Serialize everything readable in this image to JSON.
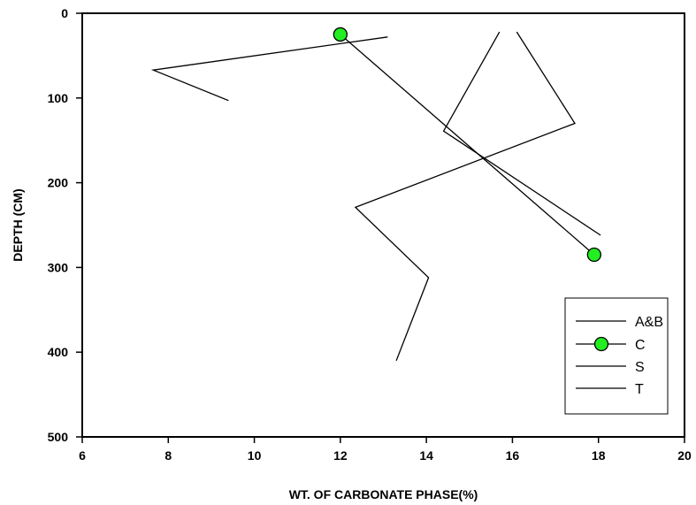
{
  "chart_data": {
    "type": "line",
    "xlabel": "WT. OF CARBONATE PHASE(%)",
    "ylabel": "DEPTH (CM)",
    "xlim": [
      6,
      20
    ],
    "ylim": [
      0,
      500
    ],
    "y_inverted": true,
    "x_ticks": [
      6,
      8,
      10,
      12,
      14,
      16,
      18,
      20
    ],
    "y_ticks": [
      0,
      100,
      200,
      300,
      400,
      500
    ],
    "grid": false,
    "legend_position": "bottom-right",
    "series": [
      {
        "name": "A&B",
        "marker": "none",
        "color": "#000000",
        "points": [
          [
            13.1,
            28
          ],
          [
            7.65,
            67
          ],
          [
            9.4,
            103
          ]
        ]
      },
      {
        "name": "C",
        "marker": "circle",
        "color": "#000000",
        "marker_fill": "#22ee22",
        "points": [
          [
            12.0,
            25
          ],
          [
            17.9,
            285
          ]
        ]
      },
      {
        "name": "S",
        "marker": "none",
        "color": "#000000",
        "points": [
          [
            15.7,
            22
          ],
          [
            14.4,
            139
          ],
          [
            18.05,
            262
          ]
        ]
      },
      {
        "name": "T",
        "marker": "none",
        "color": "#000000",
        "points": [
          [
            16.1,
            22
          ],
          [
            17.45,
            130
          ],
          [
            12.35,
            229
          ],
          [
            14.05,
            312
          ],
          [
            13.3,
            410
          ]
        ]
      }
    ]
  }
}
